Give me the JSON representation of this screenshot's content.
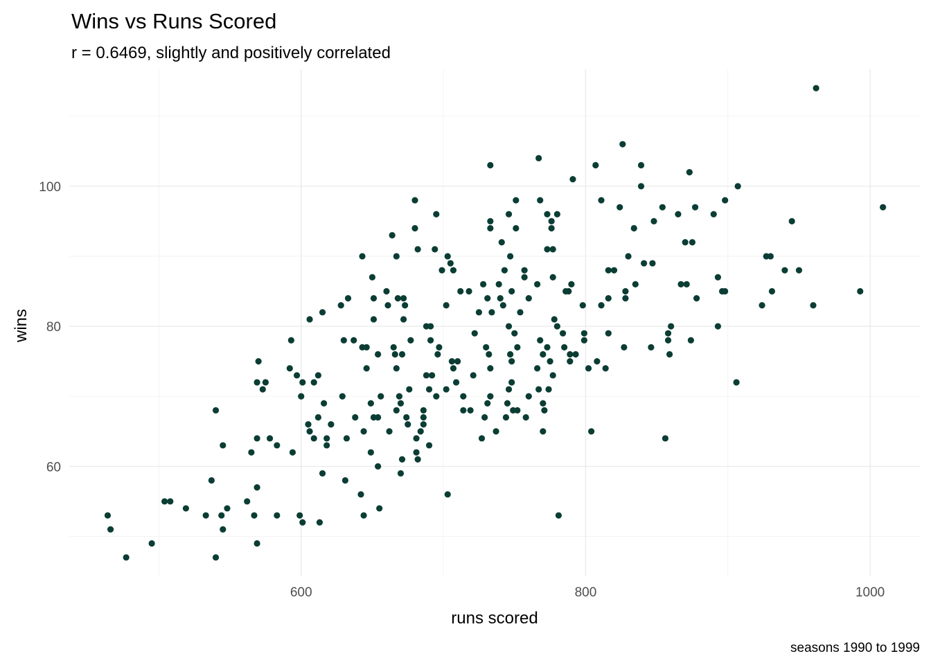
{
  "chart_data": {
    "type": "scatter",
    "title": "Wins vs Runs Scored",
    "subtitle": "r = 0.6469, slightly and positively correlated",
    "xlabel": "runs scored",
    "ylabel": "wins",
    "caption": "seasons 1990 to 1999",
    "xlim": [
      437,
      1035
    ],
    "ylim": [
      44.3,
      116.7
    ],
    "x_ticks": [
      600,
      800,
      1000
    ],
    "x_tick_labels": [
      "600",
      "800",
      "1000"
    ],
    "x_minor_ticks": [
      500,
      700,
      900
    ],
    "y_ticks": [
      60,
      80,
      100
    ],
    "y_tick_labels": [
      "60",
      "80",
      "100"
    ],
    "y_minor_ticks": [
      50,
      70,
      90,
      110
    ],
    "grid": true,
    "legend": "none",
    "point_color": "#0b3d34",
    "points": [
      [
        962,
        114
      ],
      [
        826,
        106
      ],
      [
        767,
        104
      ],
      [
        807,
        103
      ],
      [
        733,
        103
      ],
      [
        839,
        103
      ],
      [
        873,
        102
      ],
      [
        791,
        101
      ],
      [
        839,
        100
      ],
      [
        907,
        100
      ],
      [
        680,
        98
      ],
      [
        751,
        98
      ],
      [
        768,
        98
      ],
      [
        811,
        98
      ],
      [
        898,
        98
      ],
      [
        877,
        97
      ],
      [
        854,
        97
      ],
      [
        824,
        97
      ],
      [
        1009,
        97
      ],
      [
        695,
        96
      ],
      [
        746,
        96
      ],
      [
        773,
        96
      ],
      [
        780,
        96
      ],
      [
        865,
        96
      ],
      [
        890,
        96
      ],
      [
        733,
        95
      ],
      [
        776,
        95
      ],
      [
        848,
        95
      ],
      [
        945,
        95
      ],
      [
        680,
        94
      ],
      [
        733,
        94
      ],
      [
        751,
        94
      ],
      [
        776,
        94
      ],
      [
        834,
        94
      ],
      [
        664,
        93
      ],
      [
        741,
        92
      ],
      [
        870,
        92
      ],
      [
        875,
        92
      ],
      [
        682,
        91
      ],
      [
        694,
        91
      ],
      [
        773,
        91
      ],
      [
        777,
        91
      ],
      [
        643,
        90
      ],
      [
        667,
        90
      ],
      [
        703,
        90
      ],
      [
        747,
        90
      ],
      [
        830,
        90
      ],
      [
        927,
        90
      ],
      [
        930,
        90
      ],
      [
        705,
        89
      ],
      [
        841,
        89
      ],
      [
        847,
        89
      ],
      [
        699,
        88
      ],
      [
        707,
        88
      ],
      [
        743,
        88
      ],
      [
        757,
        88
      ],
      [
        816,
        88
      ],
      [
        820,
        88
      ],
      [
        940,
        88
      ],
      [
        950,
        88
      ],
      [
        777,
        87
      ],
      [
        757,
        87
      ],
      [
        893,
        87
      ],
      [
        650,
        87
      ],
      [
        739,
        86
      ],
      [
        728,
        86
      ],
      [
        766,
        86
      ],
      [
        790,
        86
      ],
      [
        835,
        86
      ],
      [
        867,
        86
      ],
      [
        871,
        86
      ],
      [
        660,
        85
      ],
      [
        712,
        85
      ],
      [
        718,
        85
      ],
      [
        748,
        85
      ],
      [
        786,
        85
      ],
      [
        788,
        85
      ],
      [
        828,
        85
      ],
      [
        896,
        85
      ],
      [
        898,
        85
      ],
      [
        931,
        85
      ],
      [
        993,
        85
      ],
      [
        651,
        84
      ],
      [
        668,
        84
      ],
      [
        672,
        84
      ],
      [
        731,
        84
      ],
      [
        740,
        84
      ],
      [
        760,
        84
      ],
      [
        816,
        84
      ],
      [
        828,
        84
      ],
      [
        878,
        84
      ],
      [
        633,
        84
      ],
      [
        628,
        83
      ],
      [
        661,
        83
      ],
      [
        673,
        83
      ],
      [
        702,
        83
      ],
      [
        742,
        83
      ],
      [
        798,
        83
      ],
      [
        811,
        83
      ],
      [
        924,
        83
      ],
      [
        960,
        83
      ],
      [
        615,
        82
      ],
      [
        734,
        82
      ],
      [
        725,
        82
      ],
      [
        754,
        82
      ],
      [
        606,
        81
      ],
      [
        651,
        81
      ],
      [
        672,
        81
      ],
      [
        778,
        81
      ],
      [
        688,
        80
      ],
      [
        691,
        80
      ],
      [
        746,
        80
      ],
      [
        780,
        80
      ],
      [
        860,
        80
      ],
      [
        893,
        80
      ],
      [
        722,
        79
      ],
      [
        750,
        79
      ],
      [
        784,
        79
      ],
      [
        799,
        79
      ],
      [
        816,
        79
      ],
      [
        858,
        79
      ],
      [
        593,
        78
      ],
      [
        630,
        78
      ],
      [
        637,
        78
      ],
      [
        677,
        78
      ],
      [
        691,
        78
      ],
      [
        768,
        78
      ],
      [
        799,
        78
      ],
      [
        858,
        78
      ],
      [
        874,
        78
      ],
      [
        643,
        77
      ],
      [
        646,
        77
      ],
      [
        665,
        77
      ],
      [
        697,
        77
      ],
      [
        730,
        77
      ],
      [
        752,
        77
      ],
      [
        773,
        77
      ],
      [
        785,
        77
      ],
      [
        827,
        77
      ],
      [
        846,
        77
      ],
      [
        654,
        76
      ],
      [
        666,
        76
      ],
      [
        671,
        76
      ],
      [
        696,
        76
      ],
      [
        732,
        76
      ],
      [
        747,
        76
      ],
      [
        770,
        76
      ],
      [
        789,
        76
      ],
      [
        793,
        76
      ],
      [
        859,
        76
      ],
      [
        570,
        75
      ],
      [
        706,
        75
      ],
      [
        710,
        75
      ],
      [
        748,
        75
      ],
      [
        775,
        75
      ],
      [
        789,
        75
      ],
      [
        808,
        75
      ],
      [
        592,
        74
      ],
      [
        646,
        74
      ],
      [
        667,
        74
      ],
      [
        707,
        74
      ],
      [
        733,
        74
      ],
      [
        766,
        74
      ],
      [
        802,
        74
      ],
      [
        814,
        74
      ],
      [
        597,
        73
      ],
      [
        612,
        73
      ],
      [
        688,
        73
      ],
      [
        692,
        73
      ],
      [
        721,
        73
      ],
      [
        777,
        73
      ],
      [
        569,
        72
      ],
      [
        575,
        72
      ],
      [
        601,
        72
      ],
      [
        609,
        72
      ],
      [
        709,
        72
      ],
      [
        748,
        72
      ],
      [
        906,
        72
      ],
      [
        573,
        71
      ],
      [
        676,
        71
      ],
      [
        690,
        71
      ],
      [
        702,
        71
      ],
      [
        746,
        71
      ],
      [
        767,
        71
      ],
      [
        774,
        71
      ],
      [
        600,
        70
      ],
      [
        629,
        70
      ],
      [
        656,
        70
      ],
      [
        669,
        70
      ],
      [
        695,
        70
      ],
      [
        714,
        70
      ],
      [
        733,
        70
      ],
      [
        760,
        70
      ],
      [
        616,
        69
      ],
      [
        649,
        69
      ],
      [
        670,
        69
      ],
      [
        731,
        69
      ],
      [
        745,
        69
      ],
      [
        770,
        69
      ],
      [
        540,
        68
      ],
      [
        667,
        68
      ],
      [
        686,
        68
      ],
      [
        714,
        68
      ],
      [
        719,
        68
      ],
      [
        749,
        68
      ],
      [
        752,
        68
      ],
      [
        771,
        68
      ],
      [
        612,
        67
      ],
      [
        638,
        67
      ],
      [
        651,
        67
      ],
      [
        654,
        67
      ],
      [
        674,
        67
      ],
      [
        686,
        67
      ],
      [
        729,
        67
      ],
      [
        744,
        67
      ],
      [
        758,
        67
      ],
      [
        605,
        66
      ],
      [
        621,
        66
      ],
      [
        675,
        66
      ],
      [
        686,
        66
      ],
      [
        606,
        65
      ],
      [
        644,
        65
      ],
      [
        662,
        65
      ],
      [
        684,
        65
      ],
      [
        737,
        65
      ],
      [
        770,
        65
      ],
      [
        804,
        65
      ],
      [
        569,
        64
      ],
      [
        578,
        64
      ],
      [
        609,
        64
      ],
      [
        618,
        64
      ],
      [
        632,
        64
      ],
      [
        681,
        64
      ],
      [
        727,
        64
      ],
      [
        856,
        64
      ],
      [
        545,
        63
      ],
      [
        583,
        63
      ],
      [
        618,
        63
      ],
      [
        690,
        63
      ],
      [
        565,
        62
      ],
      [
        594,
        62
      ],
      [
        681,
        62
      ],
      [
        649,
        62
      ],
      [
        671,
        61
      ],
      [
        682,
        61
      ],
      [
        654,
        60
      ],
      [
        670,
        59
      ],
      [
        615,
        59
      ],
      [
        537,
        58
      ],
      [
        631,
        58
      ],
      [
        569,
        57
      ],
      [
        642,
        56
      ],
      [
        703,
        56
      ],
      [
        504,
        55
      ],
      [
        508,
        55
      ],
      [
        562,
        55
      ],
      [
        519,
        54
      ],
      [
        548,
        54
      ],
      [
        655,
        54
      ],
      [
        464,
        53
      ],
      [
        533,
        53
      ],
      [
        544,
        53
      ],
      [
        567,
        53
      ],
      [
        583,
        53
      ],
      [
        599,
        53
      ],
      [
        644,
        53
      ],
      [
        781,
        53
      ],
      [
        466,
        51
      ],
      [
        545,
        51
      ],
      [
        601,
        52
      ],
      [
        613,
        52
      ],
      [
        495,
        49
      ],
      [
        569,
        49
      ],
      [
        477,
        47
      ],
      [
        540,
        47
      ]
    ]
  }
}
